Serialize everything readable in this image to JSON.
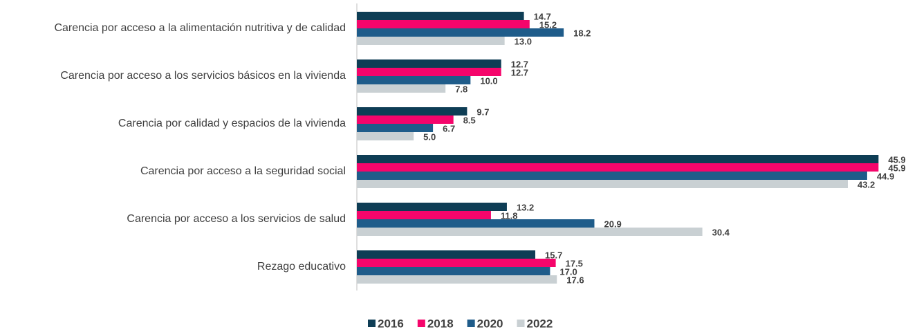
{
  "chart_data": {
    "type": "hbar",
    "categories": [
      "Carencia por acceso a la alimentación nutritiva y de calidad",
      "Carencia por acceso a los servicios básicos en la vivienda",
      "Carencia por calidad y espacios de la vivienda",
      "Carencia por acceso a la seguridad social",
      "Carencia por acceso a los servicios de salud",
      "Rezago educativo"
    ],
    "series": [
      {
        "name": "2016",
        "color": "#0e3d55",
        "values": [
          14.7,
          12.7,
          9.7,
          45.9,
          13.2,
          15.7
        ],
        "value_labels": [
          "14.7",
          "12.7",
          "9.7",
          "45.9",
          "13.2",
          "15.7"
        ]
      },
      {
        "name": "2018",
        "color": "#f5056b",
        "values": [
          15.2,
          12.7,
          8.5,
          45.9,
          11.8,
          17.5
        ],
        "value_labels": [
          "15.2",
          "12.7",
          "8.5",
          "45.9",
          "11.8",
          "17.5"
        ]
      },
      {
        "name": "2020",
        "color": "#1f5c8a",
        "values": [
          18.2,
          10.0,
          6.7,
          44.9,
          20.9,
          17.0
        ],
        "value_labels": [
          "18.2",
          "10.0",
          "6.7",
          "44.9",
          "20.9",
          "17.0"
        ]
      },
      {
        "name": "2022",
        "color": "#c9d0d3",
        "values": [
          13.0,
          7.8,
          5.0,
          43.2,
          30.4,
          17.6
        ],
        "value_labels": [
          "13.0",
          "7.8",
          "5.0",
          "43.2",
          "30.4",
          "17.6"
        ]
      }
    ],
    "xlim": [
      0,
      46
    ],
    "legend": "bottom"
  }
}
